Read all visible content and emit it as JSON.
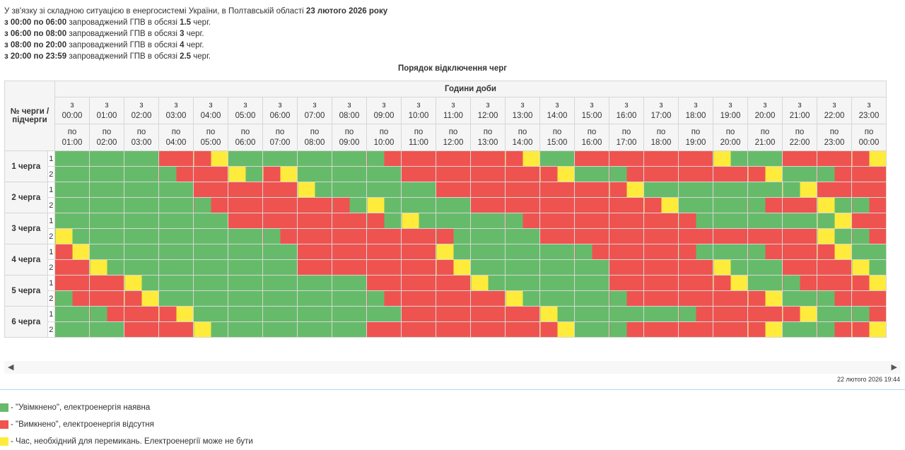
{
  "notice": {
    "line1_prefix": "У зв'язку зі складною ситуацією в енергосистемі України, в Полтавській області",
    "line1_date": "23 лютого 2026 року",
    "periods": [
      {
        "range": "з 00:00 по 06:00",
        "text": "запроваджений ГПВ в обсязі",
        "amount": "1.5",
        "unit": "черг."
      },
      {
        "range": "з 06:00 по 08:00",
        "text": "запроваджений ГПВ в обсязі",
        "amount": "3",
        "unit": "черг."
      },
      {
        "range": "з 08:00 по 20:00",
        "text": "запроваджений ГПВ в обсязі",
        "amount": "4",
        "unit": "черг."
      },
      {
        "range": "з 20:00 по 23:59",
        "text": "запроваджений ГПВ в обсязі",
        "amount": "2.5",
        "unit": "черг."
      }
    ]
  },
  "table": {
    "title": "Порядок відключення черг",
    "queue_header": "№ черги / підчерги",
    "hours_header": "Години доби",
    "from_prefix": "з",
    "to_prefix": "по",
    "from_times": [
      "00:00",
      "01:00",
      "02:00",
      "03:00",
      "04:00",
      "05:00",
      "06:00",
      "07:00",
      "08:00",
      "09:00",
      "10:00",
      "11:00",
      "12:00",
      "13:00",
      "14:00",
      "15:00",
      "16:00",
      "17:00",
      "18:00",
      "19:00",
      "20:00",
      "21:00",
      "22:00",
      "23:00"
    ],
    "to_times": [
      "01:00",
      "02:00",
      "03:00",
      "04:00",
      "05:00",
      "06:00",
      "07:00",
      "08:00",
      "09:00",
      "10:00",
      "11:00",
      "12:00",
      "13:00",
      "14:00",
      "15:00",
      "16:00",
      "17:00",
      "18:00",
      "19:00",
      "20:00",
      "21:00",
      "22:00",
      "23:00",
      "00:00"
    ],
    "queues": [
      {
        "label": "1 черга",
        "subs": [
          {
            "num": "1",
            "cells": "GGGGGGRRRYGGGGGGGGGRRRRRRRRYGGRRRRRRRRYGGGRRRRRY"
          },
          {
            "num": "2",
            "cells": "GGGGGGGRRRYGRYGGGGGGRRRRRRRRRYGGGRRRRRRRRYGGGRRR"
          }
        ]
      },
      {
        "label": "2 черга",
        "subs": [
          {
            "num": "1",
            "cells": "GGGGGGGGRRRRRRYGGGGGGGRRRRRRRRRRRYGGGGGGGGGYRRRR"
          },
          {
            "num": "2",
            "cells": "GGGGGGGGGRRRRRRRRGYGGGGGRRRRRRRRRRRYGGGGGRRRYGGR"
          }
        ]
      },
      {
        "label": "3 черга",
        "subs": [
          {
            "num": "1",
            "cells": "GGGGGGGGGGRRRRRRRRRGYGGGGGGRRRRRRRRRRGGGGGGGGYRR"
          },
          {
            "num": "2",
            "cells": "YGGGGGGGGGGGGRRRRRRRRRRGGGGGRRRRRRRRRRRRRRRRYGGR"
          }
        ]
      },
      {
        "label": "4 черга",
        "subs": [
          {
            "num": "1",
            "cells": "RYGGGGGGGGGGGGRRRRRRRRYGGGGGGGGRRRRRRGGGGRRRRYGG"
          },
          {
            "num": "2",
            "cells": "RRYGGGGGGGGGGGRRRRRRRRRYGGGGGGGGRRRRRRYGGGRRRRYG"
          }
        ]
      },
      {
        "label": "5 черга",
        "subs": [
          {
            "num": "1",
            "cells": "RRRRYGGGGGGGGGGGGGRRRRRRYGGGGGGGRRRRRRRYGGGRRRRY"
          },
          {
            "num": "2",
            "cells": "GRRRRYGGGGGGGGGGGGGRRRRRRRYGGGGGGRRRRRRRRYGGGRRR"
          }
        ]
      },
      {
        "label": "6 черга",
        "subs": [
          {
            "num": "1",
            "cells": "GGGRRRRYGGGGGGGGGGGGRRRRRRRRYGGGGGGGGRRRRRRYGGGR"
          },
          {
            "num": "2",
            "cells": "GGGGRRRRYGGGGGGGGGRRRRRRRRRRRYGGGRRRRRRRRYGGGRRY"
          }
        ]
      }
    ]
  },
  "timestamp": "22 лютого 2026 19:44",
  "legend": {
    "on": "- \"Увімкнено\", електроенергія наявна",
    "off": "- \"Вимкнено\", електроенергія відсутня",
    "switch": "- Час, необхідний для перемикань. Електроенергії може не бути"
  },
  "colors": {
    "on": "#66bb6a",
    "off": "#ef5350",
    "switch": "#ffeb3b"
  }
}
